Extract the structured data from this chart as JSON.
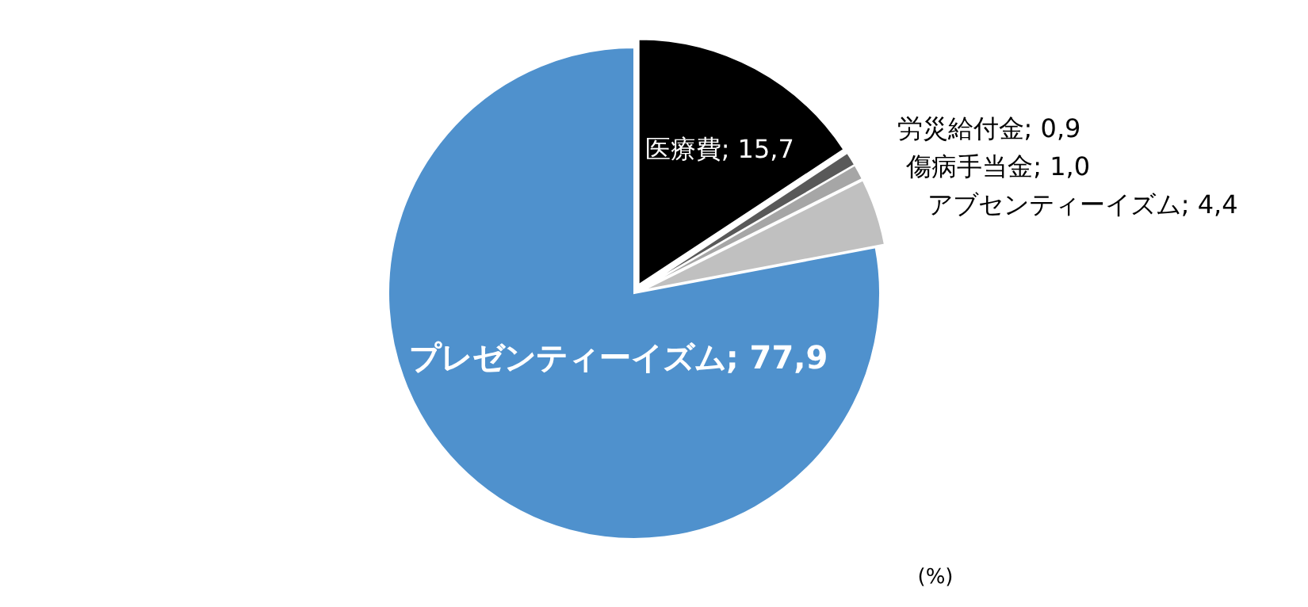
{
  "chart_data": {
    "type": "pie",
    "categories": [
      "医療費",
      "労災給付金",
      "傷病手当金",
      "アブセンティーイズム",
      "プレゼンティーイズム"
    ],
    "values": [
      15.7,
      0.9,
      1.0,
      4.4,
      77.9
    ],
    "value_labels": [
      "15,7",
      "0,9",
      "1,0",
      "4,4",
      "77,9"
    ],
    "colors": [
      "#000000",
      "#595959",
      "#a6a6a6",
      "#c0c0c0",
      "#4f91cd"
    ],
    "annotations": [
      "(%)"
    ]
  }
}
